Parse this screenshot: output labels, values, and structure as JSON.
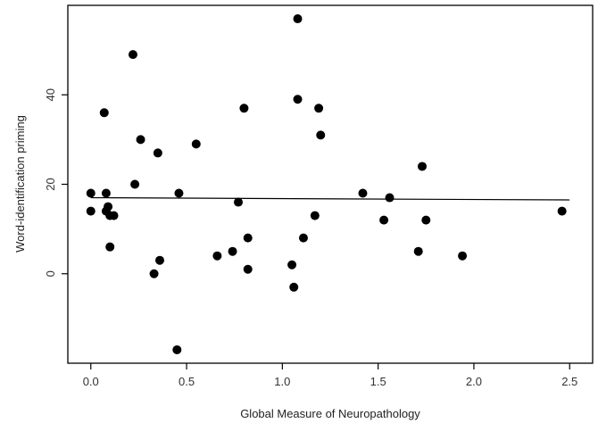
{
  "chart_data": {
    "type": "scatter",
    "xlabel": "Global Measure of Neuropathology",
    "ylabel": "Word-identification priming",
    "xlim": [
      -0.12,
      2.62
    ],
    "ylim": [
      -20,
      60
    ],
    "xticks": [
      0.0,
      0.5,
      1.0,
      1.5,
      2.0,
      2.5
    ],
    "xtick_labels": [
      "0.0",
      "0.5",
      "1.0",
      "1.5",
      "2.0",
      "2.5"
    ],
    "yticks": [
      0,
      20,
      40
    ],
    "ytick_labels": [
      "0",
      "20",
      "40"
    ],
    "grid": false,
    "legend": "none",
    "point_color": "#000000",
    "fit_line": {
      "x": [
        0.0,
        2.5
      ],
      "y": [
        17.0,
        16.5
      ]
    },
    "points": [
      {
        "x": 0.0,
        "y": 18
      },
      {
        "x": 0.0,
        "y": 14
      },
      {
        "x": 0.07,
        "y": 36
      },
      {
        "x": 0.08,
        "y": 18
      },
      {
        "x": 0.08,
        "y": 14
      },
      {
        "x": 0.09,
        "y": 15
      },
      {
        "x": 0.1,
        "y": 13
      },
      {
        "x": 0.1,
        "y": 6
      },
      {
        "x": 0.12,
        "y": 13
      },
      {
        "x": 0.22,
        "y": 49
      },
      {
        "x": 0.23,
        "y": 20
      },
      {
        "x": 0.26,
        "y": 30
      },
      {
        "x": 0.33,
        "y": 0
      },
      {
        "x": 0.35,
        "y": 27
      },
      {
        "x": 0.36,
        "y": 3
      },
      {
        "x": 0.45,
        "y": -17
      },
      {
        "x": 0.46,
        "y": 18
      },
      {
        "x": 0.55,
        "y": 29
      },
      {
        "x": 0.66,
        "y": 4
      },
      {
        "x": 0.74,
        "y": 5
      },
      {
        "x": 0.77,
        "y": 16
      },
      {
        "x": 0.8,
        "y": 37
      },
      {
        "x": 0.82,
        "y": 8
      },
      {
        "x": 0.82,
        "y": 1
      },
      {
        "x": 1.05,
        "y": 2
      },
      {
        "x": 1.06,
        "y": -3
      },
      {
        "x": 1.08,
        "y": 57
      },
      {
        "x": 1.08,
        "y": 39
      },
      {
        "x": 1.11,
        "y": 8
      },
      {
        "x": 1.17,
        "y": 13
      },
      {
        "x": 1.19,
        "y": 37
      },
      {
        "x": 1.2,
        "y": 31
      },
      {
        "x": 1.42,
        "y": 18
      },
      {
        "x": 1.53,
        "y": 12
      },
      {
        "x": 1.56,
        "y": 17
      },
      {
        "x": 1.71,
        "y": 5
      },
      {
        "x": 1.73,
        "y": 24
      },
      {
        "x": 1.75,
        "y": 12
      },
      {
        "x": 1.94,
        "y": 4
      },
      {
        "x": 2.46,
        "y": 14
      }
    ]
  }
}
